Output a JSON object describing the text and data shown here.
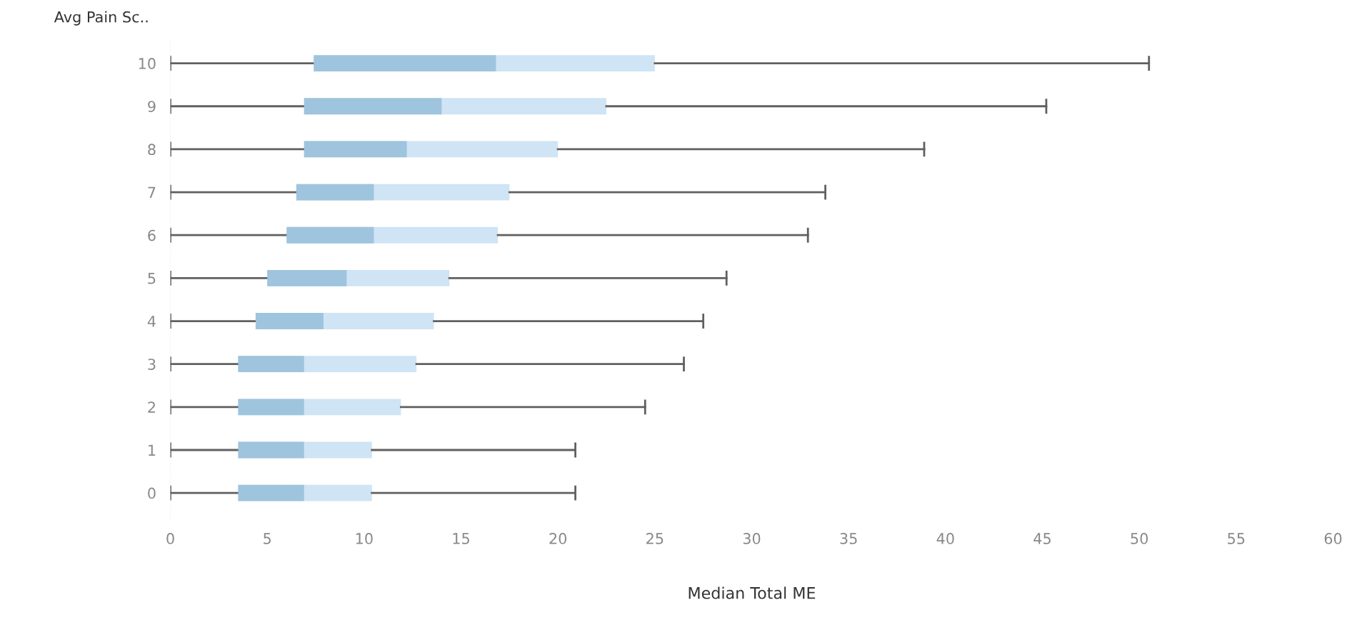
{
  "chart_data": {
    "type": "box",
    "orientation": "horizontal",
    "xlabel": "Median Total ME",
    "ylabel": "Avg Pain Sc..",
    "categories": [
      "10",
      "9",
      "8",
      "7",
      "6",
      "5",
      "4",
      "3",
      "2",
      "1",
      "0"
    ],
    "boxes": [
      {
        "low": 0,
        "q1": 7.4,
        "median": 16.8,
        "q3": 25.0,
        "high": 50.5
      },
      {
        "low": 0,
        "q1": 6.9,
        "median": 14.0,
        "q3": 22.5,
        "high": 45.2
      },
      {
        "low": 0,
        "q1": 6.9,
        "median": 12.2,
        "q3": 20.0,
        "high": 38.9
      },
      {
        "low": 0,
        "q1": 6.5,
        "median": 10.5,
        "q3": 17.5,
        "high": 33.8
      },
      {
        "low": 0,
        "q1": 6.0,
        "median": 10.5,
        "q3": 16.9,
        "high": 32.9
      },
      {
        "low": 0,
        "q1": 5.0,
        "median": 9.1,
        "q3": 14.4,
        "high": 28.7
      },
      {
        "low": 0,
        "q1": 4.4,
        "median": 7.9,
        "q3": 13.6,
        "high": 27.5
      },
      {
        "low": 0,
        "q1": 3.5,
        "median": 6.9,
        "q3": 12.7,
        "high": 26.5
      },
      {
        "low": 0,
        "q1": 3.5,
        "median": 6.9,
        "q3": 11.9,
        "high": 24.5
      },
      {
        "low": 0,
        "q1": 3.5,
        "median": 6.9,
        "q3": 10.4,
        "high": 20.9
      },
      {
        "low": 0,
        "q1": 3.5,
        "median": 6.9,
        "q3": 10.4,
        "high": 20.9
      }
    ],
    "color": "#cfe4f4",
    "colors": [
      "#9fc4dd",
      "#9fc4dd",
      "#9fc4dd",
      "#9fc4dd",
      "#9fc4dd",
      "#9fc4dd",
      "#9fc4dd",
      "#9fc4dd",
      "#9fc4dd",
      "#9fc4dd",
      "#9fc4dd"
    ],
    "xlim": [
      0,
      60
    ],
    "xticks": [
      0,
      5,
      10,
      15,
      20,
      25,
      30,
      35,
      40,
      45,
      50,
      55,
      60
    ],
    "grid": false
  }
}
